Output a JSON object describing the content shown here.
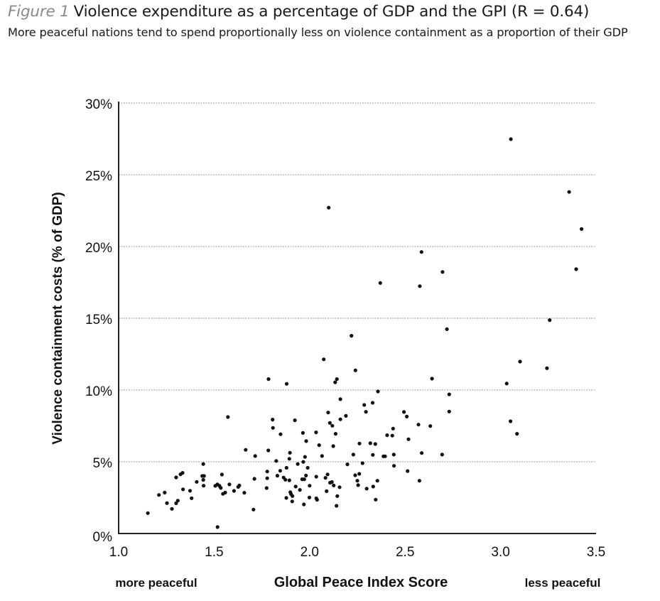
{
  "header": {
    "figure_label": "Figure 1",
    "title": "Violence expenditure as a percentage of GDP and the GPI (R = 0.64)",
    "subtitle": "More peaceful nations tend to spend proportionally less on violence containment as a proportion of their GDP"
  },
  "chart_data": {
    "type": "scatter",
    "title": "Violence expenditure as a percentage of GDP and the GPI (R = 0.64)",
    "subtitle": "More peaceful nations tend to spend proportionally less on violence containment as a proportion of their GDP",
    "xlabel": "Global Peace Index Score",
    "ylabel": "Violence containment costs (% of GDP)",
    "x_annotations": {
      "left": "more peaceful",
      "right": "less peaceful"
    },
    "xlim": [
      1.0,
      3.5
    ],
    "ylim": [
      0,
      30
    ],
    "x_ticks": [
      1.0,
      1.5,
      2.0,
      2.5,
      3.0,
      3.5
    ],
    "x_tick_labels": [
      "1.0",
      "1.5",
      "2.0",
      "2.5",
      "3.0",
      "3.5"
    ],
    "y_ticks": [
      0,
      5,
      10,
      15,
      20,
      25,
      30
    ],
    "y_tick_labels": [
      "0%",
      "5%",
      "10%",
      "15%",
      "20%",
      "25%",
      "30%"
    ],
    "grid": "horizontal dotted",
    "correlation_R": 0.64,
    "colors": {
      "points": "#111111",
      "grid": "#9a9a9a",
      "axis": "#222222"
    },
    "points": [
      [
        1.153,
        1.42
      ],
      [
        1.211,
        2.69
      ],
      [
        1.241,
        2.85
      ],
      [
        1.253,
        2.12
      ],
      [
        1.279,
        1.72
      ],
      [
        1.301,
        2.11
      ],
      [
        1.31,
        2.29
      ],
      [
        1.301,
        3.91
      ],
      [
        1.324,
        4.13
      ],
      [
        1.335,
        4.23
      ],
      [
        1.337,
        3.08
      ],
      [
        1.374,
        2.98
      ],
      [
        1.382,
        2.46
      ],
      [
        1.409,
        3.6
      ],
      [
        1.438,
        4.01
      ],
      [
        1.447,
        4.01
      ],
      [
        1.443,
        3.74
      ],
      [
        1.445,
        3.33
      ],
      [
        1.443,
        4.84
      ],
      [
        1.506,
        3.32
      ],
      [
        1.517,
        3.42
      ],
      [
        1.528,
        3.32
      ],
      [
        1.535,
        3.18
      ],
      [
        1.518,
        0.45
      ],
      [
        1.541,
        4.11
      ],
      [
        1.546,
        2.76
      ],
      [
        1.558,
        2.85
      ],
      [
        1.572,
        8.12
      ],
      [
        1.58,
        3.42
      ],
      [
        1.604,
        2.97
      ],
      [
        1.626,
        3.25
      ],
      [
        1.632,
        3.35
      ],
      [
        1.658,
        2.84
      ],
      [
        1.665,
        5.83
      ],
      [
        1.706,
        1.67
      ],
      [
        1.711,
        3.81
      ],
      [
        1.715,
        5.4
      ],
      [
        1.775,
        3.17
      ],
      [
        1.778,
        3.85
      ],
      [
        1.778,
        4.32
      ],
      [
        1.784,
        5.79
      ],
      [
        1.785,
        10.76
      ],
      [
        1.806,
        7.94
      ],
      [
        1.808,
        7.36
      ],
      [
        1.825,
        5.06
      ],
      [
        1.831,
        4.03
      ],
      [
        1.846,
        4.37
      ],
      [
        1.848,
        6.92
      ],
      [
        1.864,
        3.9
      ],
      [
        1.873,
        3.75
      ],
      [
        1.878,
        2.48
      ],
      [
        1.879,
        4.58
      ],
      [
        1.88,
        10.43
      ],
      [
        1.894,
        5.21
      ],
      [
        1.894,
        3.71
      ],
      [
        1.897,
        5.63
      ],
      [
        1.899,
        2.88
      ],
      [
        1.903,
        2.75
      ],
      [
        1.91,
        2.61
      ],
      [
        1.909,
        2.24
      ],
      [
        1.923,
        7.89
      ],
      [
        1.927,
        3.27
      ],
      [
        1.938,
        4.84
      ],
      [
        1.949,
        3.04
      ],
      [
        1.961,
        3.78
      ],
      [
        1.965,
        7.01
      ],
      [
        1.967,
        4.99
      ],
      [
        1.97,
        2.03
      ],
      [
        1.972,
        3.78
      ],
      [
        1.976,
        5.34
      ],
      [
        1.981,
        4.04
      ],
      [
        1.982,
        6.44
      ],
      [
        1.99,
        4.58
      ],
      [
        1.999,
        2.51
      ],
      [
        2.0,
        3.33
      ],
      [
        2.034,
        7.05
      ],
      [
        2.035,
        3.96
      ],
      [
        2.035,
        2.45
      ],
      [
        2.039,
        2.35
      ],
      [
        2.05,
        6.16
      ],
      [
        2.065,
        5.4
      ],
      [
        2.074,
        12.14
      ],
      [
        2.083,
        3.88
      ],
      [
        2.089,
        2.95
      ],
      [
        2.094,
        4.12
      ],
      [
        2.097,
        8.43
      ],
      [
        2.1,
        22.71
      ],
      [
        2.106,
        7.71
      ],
      [
        2.107,
        3.54
      ],
      [
        2.117,
        3.59
      ],
      [
        2.119,
        7.51
      ],
      [
        2.124,
        6.09
      ],
      [
        2.126,
        3.35
      ],
      [
        2.134,
        10.54
      ],
      [
        2.136,
        6.95
      ],
      [
        2.141,
        1.93
      ],
      [
        2.143,
        10.76
      ],
      [
        2.145,
        2.61
      ],
      [
        2.157,
        3.23
      ],
      [
        2.161,
        7.96
      ],
      [
        2.161,
        9.36
      ],
      [
        2.19,
        8.2
      ],
      [
        2.198,
        4.82
      ],
      [
        2.219,
        13.78
      ],
      [
        2.229,
        5.5
      ],
      [
        2.239,
        4.06
      ],
      [
        2.24,
        11.37
      ],
      [
        2.25,
        3.68
      ],
      [
        2.254,
        3.37
      ],
      [
        2.26,
        4.16
      ],
      [
        2.261,
        6.27
      ],
      [
        2.277,
        4.9
      ],
      [
        2.286,
        8.96
      ],
      [
        2.295,
        8.48
      ],
      [
        2.299,
        3.13
      ],
      [
        2.318,
        6.29
      ],
      [
        2.33,
        9.11
      ],
      [
        2.331,
        5.48
      ],
      [
        2.333,
        3.27
      ],
      [
        2.344,
        6.24
      ],
      [
        2.346,
        2.36
      ],
      [
        2.355,
        3.68
      ],
      [
        2.358,
        9.9
      ],
      [
        2.37,
        17.46
      ],
      [
        2.387,
        5.38
      ],
      [
        2.395,
        5.38
      ],
      [
        2.406,
        6.85
      ],
      [
        2.433,
        6.82
      ],
      [
        2.437,
        7.31
      ],
      [
        2.441,
        5.5
      ],
      [
        2.442,
        4.72
      ],
      [
        2.494,
        8.47
      ],
      [
        2.509,
        8.15
      ],
      [
        2.513,
        4.35
      ],
      [
        2.518,
        6.57
      ],
      [
        2.57,
        7.59
      ],
      [
        2.575,
        3.68
      ],
      [
        2.577,
        17.24
      ],
      [
        2.586,
        19.62
      ],
      [
        2.587,
        5.61
      ],
      [
        2.632,
        7.49
      ],
      [
        2.641,
        10.79
      ],
      [
        2.694,
        5.5
      ],
      [
        2.696,
        18.23
      ],
      [
        2.719,
        14.24
      ],
      [
        2.731,
        9.7
      ],
      [
        2.731,
        8.5
      ],
      [
        3.032,
        10.45
      ],
      [
        3.052,
        7.82
      ],
      [
        3.054,
        27.48
      ],
      [
        3.086,
        6.95
      ],
      [
        3.102,
        11.98
      ],
      [
        3.243,
        11.52
      ],
      [
        3.257,
        14.87
      ],
      [
        3.359,
        23.8
      ],
      [
        3.396,
        18.42
      ],
      [
        3.424,
        21.22
      ]
    ]
  }
}
